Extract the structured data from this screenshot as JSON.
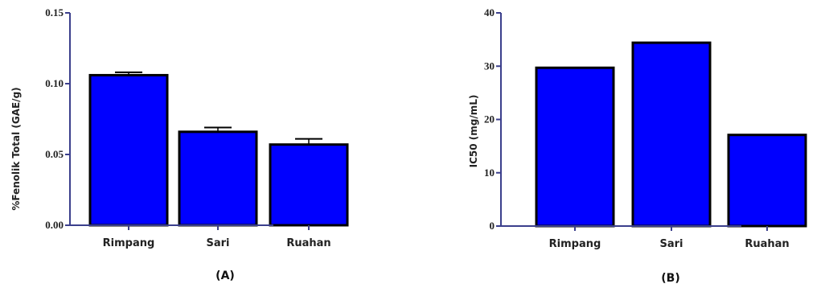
{
  "colors": {
    "bar": "#0000FF",
    "outline": "#000000",
    "axis": "#3B3F8C"
  },
  "chart_data": [
    {
      "type": "bar",
      "panel_label": "(A)",
      "ylabel": "%Fenolik Total (GAE/g)",
      "xlabel": "",
      "categories": [
        "Rimpang",
        "Sari",
        "Ruahan"
      ],
      "values": [
        0.106,
        0.066,
        0.057
      ],
      "errors": [
        0.002,
        0.003,
        0.004
      ],
      "ylim": [
        0,
        0.15
      ],
      "yticks": [
        0.0,
        0.05,
        0.1,
        0.15
      ],
      "ytick_labels": [
        "0.00",
        "0.05",
        "0.10",
        "0.15"
      ],
      "grid": false,
      "legend": "none"
    },
    {
      "type": "bar",
      "panel_label": "(B)",
      "ylabel": "IC50 (mg/mL)",
      "xlabel": "",
      "categories": [
        "Rimpang",
        "Sari",
        "Ruahan"
      ],
      "values": [
        29.7,
        34.4,
        17.1
      ],
      "ylim": [
        0,
        40
      ],
      "yticks": [
        0,
        10,
        20,
        30,
        40
      ],
      "ytick_labels": [
        "0",
        "10",
        "20",
        "30",
        "40"
      ],
      "grid": false,
      "legend": "none"
    }
  ]
}
